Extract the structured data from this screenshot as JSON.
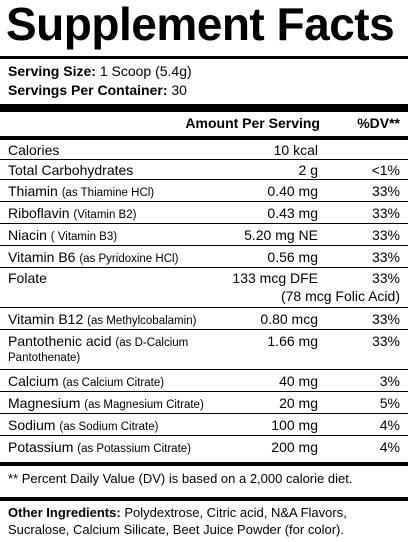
{
  "title": "Supplement Facts",
  "serving": {
    "size_label": "Serving Size:",
    "size_value": "1 Scoop (5.4g)",
    "per_container_label": "Servings Per Container:",
    "per_container_value": "30"
  },
  "header": {
    "amount": "Amount Per Serving",
    "dv": "%DV**"
  },
  "rows": [
    {
      "name": "Calories",
      "sub": "",
      "amount": "10 kcal",
      "dv": ""
    },
    {
      "name": "Total Carbohydrates",
      "sub": "",
      "amount": "2 g",
      "dv": "<1%"
    },
    {
      "name": "Thiamin",
      "sub": "(as Thiamine HCl)",
      "amount": "0.40 mg",
      "dv": "33%"
    },
    {
      "name": "Riboflavin",
      "sub": "(Vitamin B2)",
      "amount": "0.43 mg",
      "dv": "33%"
    },
    {
      "name": "Niacin",
      "sub": "( Vitamin B3)",
      "amount": "5.20 mg NE",
      "dv": "33%"
    },
    {
      "name": "Vitamin B6",
      "sub": "(as Pyridoxine HCl)",
      "amount": "0.56 mg",
      "dv": "33%"
    },
    {
      "name": "Folate",
      "sub": "",
      "amount": "133 mcg DFE",
      "dv": "33%",
      "amount_line2": "(78 mcg Folic Acid)"
    },
    {
      "name": "Vitamin B12",
      "sub": "(as Methylcobalamin)",
      "amount": "0.80 mcg",
      "dv": "33%"
    },
    {
      "name": "Pantothenic acid",
      "sub": "(as D-Calcium",
      "sub_line2": "Pantothenate)",
      "amount": "1.66 mg",
      "dv": "33%"
    },
    {
      "name": "Calcium",
      "sub": "(as Calcium Citrate)",
      "amount": "40 mg",
      "dv": "3%"
    },
    {
      "name": "Magnesium",
      "sub": "(as Magnesium Citrate)",
      "amount": "20 mg",
      "dv": "5%"
    },
    {
      "name": "Sodium",
      "sub": "(as Sodium Citrate)",
      "amount": "100 mg",
      "dv": "4%"
    },
    {
      "name": "Potassium",
      "sub": "(as Potassium Citrate)",
      "amount": "200 mg",
      "dv": "4%"
    }
  ],
  "footnote": "** Percent Daily Value (DV) is based on a 2,000 calorie diet.",
  "ingredients": {
    "label": "Other Ingredients:",
    "line1": "Polydextrose, Citric acid, N&A Flavors,",
    "line2": "Sucralose, Calcium Silicate, Beet Juice Powder (for color)."
  }
}
